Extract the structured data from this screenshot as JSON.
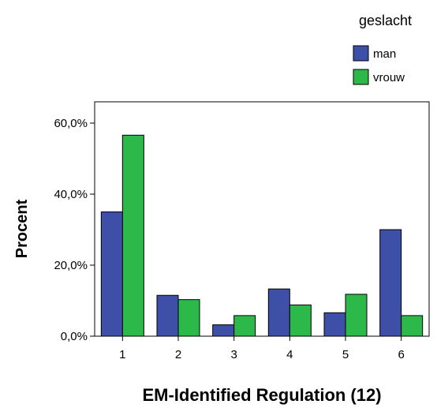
{
  "chart_data": {
    "type": "bar",
    "title": "",
    "xlabel": "EM-Identified Regulation (12)",
    "ylabel": "Procent",
    "categories": [
      "1",
      "2",
      "3",
      "4",
      "5",
      "6"
    ],
    "series": [
      {
        "name": "man",
        "color": "#3e4fa8",
        "values": [
          35.0,
          11.5,
          3.2,
          13.3,
          6.6,
          30.0
        ]
      },
      {
        "name": "vrouw",
        "color": "#2db84a",
        "values": [
          56.6,
          10.3,
          5.8,
          8.8,
          11.8,
          5.8
        ]
      }
    ],
    "ylim": [
      0,
      66
    ],
    "yticks": [
      0,
      20,
      40,
      60
    ],
    "ytick_labels": [
      "0,0%",
      "20,0%",
      "40,0%",
      "60,0%"
    ],
    "legend": {
      "title": "geslacht",
      "placement": "top-right"
    },
    "grid": false
  }
}
